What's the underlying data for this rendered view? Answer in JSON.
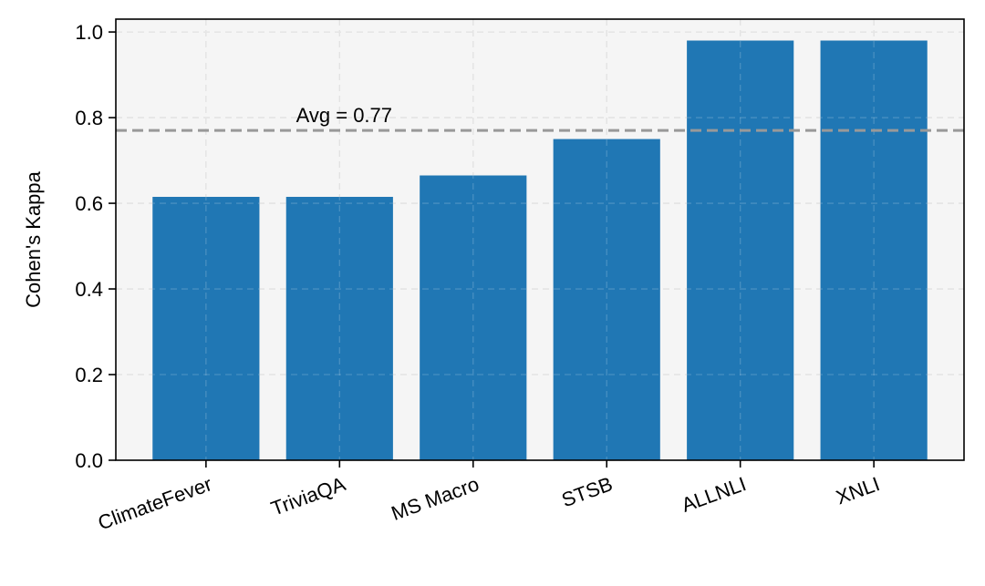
{
  "chart_data": {
    "type": "bar",
    "title": "",
    "xlabel": "",
    "ylabel": "Cohen's Kappa",
    "categories": [
      "ClimateFever",
      "TriviaQA",
      "MS Macro",
      "STSB",
      "ALLNLI",
      "XNLI"
    ],
    "values": [
      0.615,
      0.615,
      0.665,
      0.75,
      0.98,
      0.98
    ],
    "ylim": [
      0.0,
      1.03
    ],
    "yticks": [
      0.0,
      0.2,
      0.4,
      0.6,
      0.8,
      1.0
    ],
    "ytick_labels": [
      "0.0",
      "0.2",
      "0.4",
      "0.6",
      "0.8",
      "1.0"
    ],
    "grid": true,
    "legend": "none",
    "bar_color": "#2077b4",
    "plot_background": "#f5f5f5",
    "reference_line": {
      "y": 0.77,
      "label": "Avg = 0.77",
      "color": "#999999",
      "style": "dashed"
    }
  }
}
